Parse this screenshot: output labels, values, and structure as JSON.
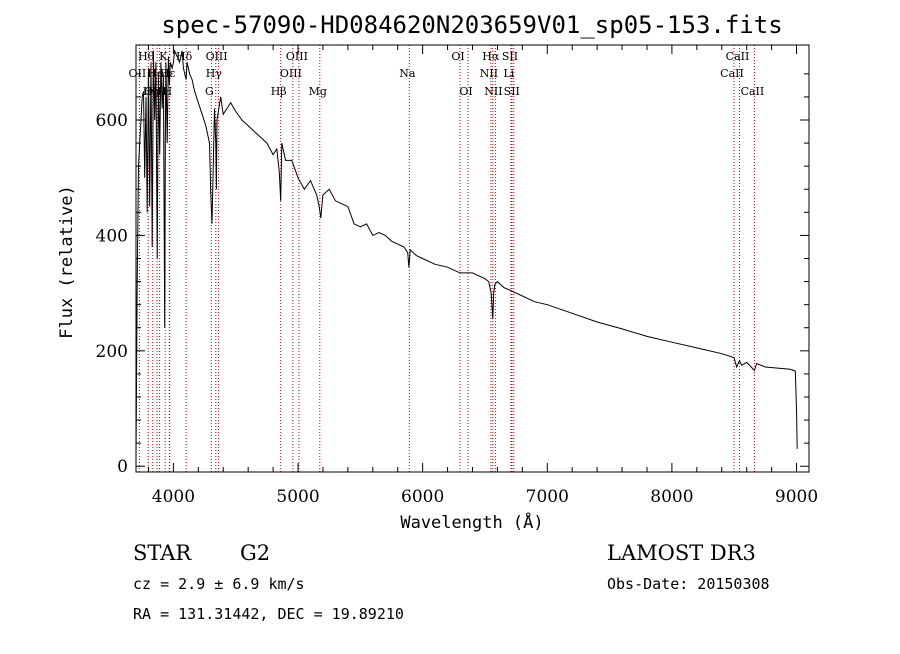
{
  "chart_data": {
    "type": "line",
    "title": "spec-57090-HD084620N203659V01_sp05-153.fits",
    "xlabel": "Wavelength (Å)",
    "ylabel": "Flux (relative)",
    "xlim": [
      3700,
      9100
    ],
    "ylim": [
      -10,
      730
    ],
    "x_ticks": [
      4000,
      5000,
      6000,
      7000,
      8000,
      9000
    ],
    "y_ticks": [
      0,
      200,
      400,
      600
    ],
    "series": [
      {
        "name": "spectrum",
        "x": [
          3700,
          3710,
          3720,
          3730,
          3740,
          3750,
          3760,
          3770,
          3780,
          3790,
          3800,
          3810,
          3820,
          3830,
          3840,
          3850,
          3860,
          3870,
          3880,
          3890,
          3900,
          3910,
          3920,
          3930,
          3935,
          3940,
          3950,
          3960,
          3968,
          3975,
          3990,
          4000,
          4010,
          4030,
          4050,
          4070,
          4080,
          4102,
          4110,
          4130,
          4150,
          4170,
          4200,
          4230,
          4260,
          4290,
          4300,
          4310,
          4330,
          4340,
          4345,
          4350,
          4380,
          4400,
          4430,
          4460,
          4500,
          4550,
          4600,
          4650,
          4700,
          4750,
          4800,
          4830,
          4850,
          4861,
          4870,
          4900,
          4950,
          5000,
          5050,
          5100,
          5150,
          5170,
          5183,
          5200,
          5250,
          5300,
          5350,
          5400,
          5450,
          5500,
          5550,
          5600,
          5650,
          5700,
          5750,
          5800,
          5850,
          5880,
          5890,
          5895,
          5900,
          5950,
          6000,
          6100,
          6200,
          6300,
          6400,
          6450,
          6500,
          6530,
          6550,
          6563,
          6570,
          6580,
          6600,
          6650,
          6700,
          6800,
          6900,
          7000,
          7200,
          7400,
          7600,
          7800,
          8000,
          8200,
          8400,
          8498,
          8520,
          8542,
          8560,
          8600,
          8662,
          8680,
          8750,
          8850,
          8950,
          8990,
          9000,
          9005
        ],
        "y": [
          10,
          320,
          520,
          560,
          600,
          640,
          650,
          500,
          640,
          440,
          690,
          450,
          700,
          380,
          720,
          600,
          700,
          360,
          680,
          540,
          700,
          620,
          680,
          240,
          560,
          700,
          560,
          710,
          660,
          700,
          690,
          700,
          720,
          710,
          700,
          720,
          690,
          670,
          700,
          680,
          670,
          650,
          630,
          610,
          590,
          560,
          470,
          420,
          620,
          560,
          480,
          600,
          640,
          610,
          620,
          630,
          615,
          600,
          590,
          580,
          570,
          560,
          540,
          550,
          510,
          460,
          560,
          530,
          530,
          500,
          480,
          495,
          470,
          450,
          430,
          470,
          480,
          460,
          455,
          450,
          420,
          415,
          420,
          400,
          405,
          400,
          390,
          385,
          380,
          370,
          345,
          360,
          375,
          365,
          360,
          350,
          345,
          335,
          335,
          330,
          325,
          320,
          300,
          255,
          300,
          315,
          320,
          310,
          305,
          295,
          285,
          280,
          265,
          250,
          238,
          225,
          215,
          205,
          195,
          188,
          172,
          183,
          175,
          180,
          166,
          178,
          172,
          170,
          168,
          165,
          100,
          30
        ],
        "color": "#000000"
      }
    ],
    "lines": [
      {
        "name": "Hθ",
        "wavelength": 3798,
        "row": 0
      },
      {
        "name": "K",
        "wavelength": 3934,
        "row": 0
      },
      {
        "name": "Hδ",
        "wavelength": 4102,
        "row": 0
      },
      {
        "name": "OII",
        "wavelength": 3727,
        "row": 1
      },
      {
        "name": "HeI",
        "wavelength": 3889,
        "row": 1
      },
      {
        "name": "Hε",
        "wavelength": 3970,
        "row": 1
      },
      {
        "name": "OIII",
        "wavelength": 3869,
        "row": 2
      },
      {
        "name": "Hη",
        "wavelength": 3835,
        "row": 2
      },
      {
        "name": "H",
        "wavelength": 3968,
        "row": 2
      },
      {
        "name": "OIII",
        "wavelength": 4363,
        "row": 0
      },
      {
        "name": "Hγ",
        "wavelength": 4340,
        "row": 1
      },
      {
        "name": "G",
        "wavelength": 4305,
        "row": 2
      },
      {
        "name": "OIII",
        "wavelength": 5007,
        "row": 0
      },
      {
        "name": "OIII",
        "wavelength": 4959,
        "row": 1
      },
      {
        "name": "Hβ",
        "wavelength": 4861,
        "row": 2
      },
      {
        "name": "Mg",
        "wavelength": 5175,
        "row": 2
      },
      {
        "name": "Na",
        "wavelength": 5893,
        "row": 1
      },
      {
        "name": "OI",
        "wavelength": 6300,
        "row": 0
      },
      {
        "name": "OI",
        "wavelength": 6364,
        "row": 2
      },
      {
        "name": "Hα",
        "wavelength": 6563,
        "row": 0
      },
      {
        "name": "SII",
        "wavelength": 6717,
        "row": 0
      },
      {
        "name": "NII",
        "wavelength": 6548,
        "row": 1
      },
      {
        "name": "Li",
        "wavelength": 6708,
        "row": 1
      },
      {
        "name": "NII",
        "wavelength": 6584,
        "row": 2
      },
      {
        "name": "SII",
        "wavelength": 6731,
        "row": 2
      },
      {
        "name": "CaII",
        "wavelength": 8542,
        "row": 0
      },
      {
        "name": "CaII",
        "wavelength": 8498,
        "row": 1
      },
      {
        "name": "CaII",
        "wavelength": 8662,
        "row": 2
      }
    ],
    "line_color": "#cc0000",
    "grid": false,
    "legend": "none"
  },
  "info": {
    "class": "STAR",
    "subclass": "G2",
    "cz": "cz = 2.9 ± 6.9 km/s",
    "coords": "RA = 131.31442, DEC =  19.89210",
    "survey": "LAMOST DR3",
    "obs_date": "Obs-Date: 20150308"
  }
}
